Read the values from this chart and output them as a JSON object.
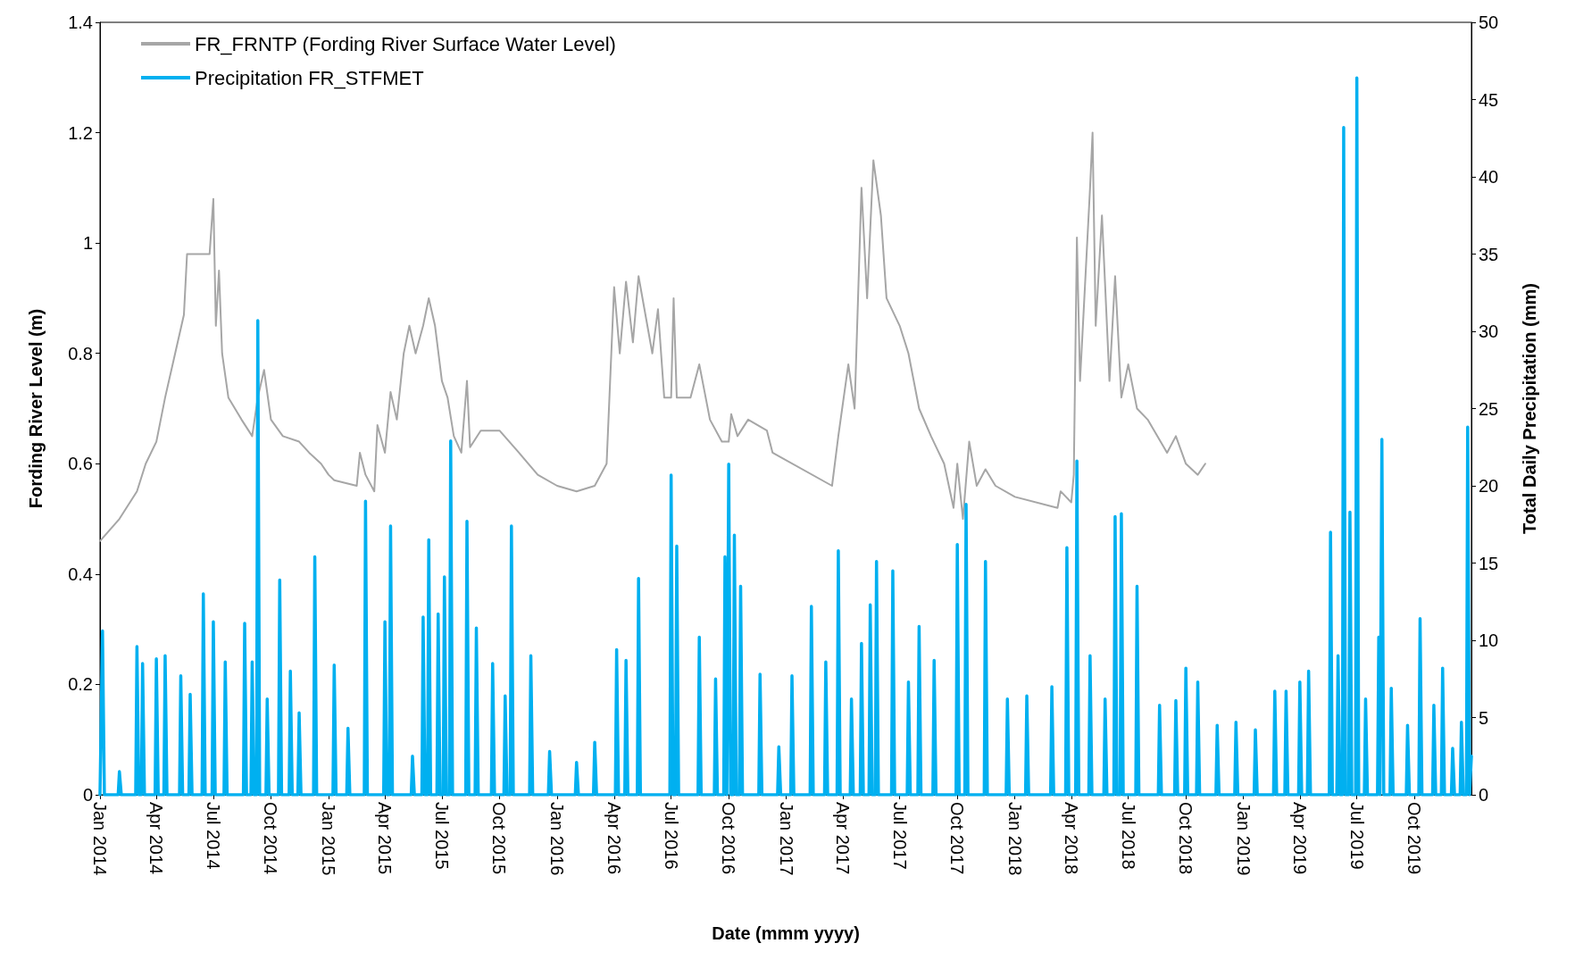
{
  "chart_data": {
    "type": "line",
    "xlabel": "Date (mmm yyyy)",
    "ylabel": "Fording River Level (m)",
    "y2label": "Total Daily Precipitation (mm)",
    "xlim": [
      "2014-01-01",
      "2019-12-31"
    ],
    "xticks": [
      {
        "value": "2014-01-01",
        "label": "Jan 2014"
      },
      {
        "value": "2014-04-01",
        "label": "Apr 2014"
      },
      {
        "value": "2014-07-01",
        "label": "Jul 2014"
      },
      {
        "value": "2014-10-01",
        "label": "Oct 2014"
      },
      {
        "value": "2015-01-01",
        "label": "Jan 2015"
      },
      {
        "value": "2015-04-01",
        "label": "Apr 2015"
      },
      {
        "value": "2015-07-01",
        "label": "Jul 2015"
      },
      {
        "value": "2015-10-01",
        "label": "Oct 2015"
      },
      {
        "value": "2016-01-01",
        "label": "Jan 2016"
      },
      {
        "value": "2016-04-01",
        "label": "Apr 2016"
      },
      {
        "value": "2016-07-01",
        "label": "Jul 2016"
      },
      {
        "value": "2016-10-01",
        "label": "Oct 2016"
      },
      {
        "value": "2017-01-01",
        "label": "Jan 2017"
      },
      {
        "value": "2017-04-01",
        "label": "Apr 2017"
      },
      {
        "value": "2017-07-01",
        "label": "Jul 2017"
      },
      {
        "value": "2017-10-01",
        "label": "Oct 2017"
      },
      {
        "value": "2018-01-01",
        "label": "Jan 2018"
      },
      {
        "value": "2018-04-01",
        "label": "Apr 2018"
      },
      {
        "value": "2018-07-01",
        "label": "Jul 2018"
      },
      {
        "value": "2018-10-01",
        "label": "Oct 2018"
      },
      {
        "value": "2019-01-01",
        "label": "Jan 2019"
      },
      {
        "value": "2019-04-01",
        "label": "Apr 2019"
      },
      {
        "value": "2019-07-01",
        "label": "Jul 2019"
      },
      {
        "value": "2019-10-01",
        "label": "Oct 2019"
      }
    ],
    "ylim": [
      0,
      1.4
    ],
    "yticks": [
      0,
      0.2,
      0.4,
      0.6,
      0.8,
      1,
      1.2,
      1.4
    ],
    "y2lim": [
      0,
      50
    ],
    "y2ticks": [
      0,
      5,
      10,
      15,
      20,
      25,
      30,
      35,
      40,
      45,
      50
    ],
    "grid": false,
    "legend": "top left",
    "marker": "none",
    "line_style": "solid",
    "series": [
      {
        "name": "FR_FRNTP (Fording River Surface Water Level)",
        "color": "#a6a6a6",
        "x": [
          "2014-01-01",
          "2014-02-01",
          "2014-03-01",
          "2014-03-15",
          "2014-04-01",
          "2014-04-15",
          "2014-05-01",
          "2014-05-15",
          "2014-05-20",
          "2014-06-25",
          "2014-07-01",
          "2014-07-05",
          "2014-07-10",
          "2014-07-15",
          "2014-07-25",
          "2014-08-15",
          "2014-09-01",
          "2014-09-10",
          "2014-09-20",
          "2014-10-01",
          "2014-10-20",
          "2014-11-15",
          "2014-12-01",
          "2014-12-20",
          "2015-01-01",
          "2015-01-10",
          "2015-02-15",
          "2015-02-20",
          "2015-03-01",
          "2015-03-15",
          "2015-03-20",
          "2015-04-01",
          "2015-04-10",
          "2015-04-20",
          "2015-05-01",
          "2015-05-10",
          "2015-05-20",
          "2015-06-01",
          "2015-06-10",
          "2015-06-20",
          "2015-07-01",
          "2015-07-10",
          "2015-07-20",
          "2015-08-01",
          "2015-08-10",
          "2015-08-15",
          "2015-09-01",
          "2015-10-01",
          "2015-11-01",
          "2015-12-01",
          "2016-01-01",
          "2016-02-01",
          "2016-03-01",
          "2016-03-20",
          "2016-04-01",
          "2016-04-10",
          "2016-04-20",
          "2016-05-01",
          "2016-05-10",
          "2016-06-01",
          "2016-06-10",
          "2016-06-20",
          "2016-07-01",
          "2016-07-05",
          "2016-07-10",
          "2016-08-01",
          "2016-08-15",
          "2016-09-01",
          "2016-09-20",
          "2016-10-01",
          "2016-10-05",
          "2016-10-15",
          "2016-11-01",
          "2016-12-01",
          "2016-12-10",
          "2017-03-15",
          "2017-03-25",
          "2017-04-10",
          "2017-04-20",
          "2017-05-01",
          "2017-05-10",
          "2017-05-20",
          "2017-06-01",
          "2017-06-10",
          "2017-07-01",
          "2017-07-15",
          "2017-08-01",
          "2017-08-20",
          "2017-09-10",
          "2017-09-25",
          "2017-10-01",
          "2017-10-10",
          "2017-10-20",
          "2017-11-01",
          "2017-11-15",
          "2017-12-01",
          "2018-01-01",
          "2018-03-10",
          "2018-03-15",
          "2018-04-01",
          "2018-04-05",
          "2018-04-10",
          "2018-04-15",
          "2018-05-01",
          "2018-05-05",
          "2018-05-10",
          "2018-05-20",
          "2018-06-01",
          "2018-06-10",
          "2018-06-20",
          "2018-07-01",
          "2018-07-15",
          "2018-08-01",
          "2018-09-01",
          "2018-09-15",
          "2018-10-01",
          "2018-10-20",
          "2018-11-01"
        ],
        "values": [
          0.46,
          0.5,
          0.55,
          0.6,
          0.64,
          0.72,
          0.8,
          0.87,
          0.98,
          0.98,
          1.08,
          0.85,
          0.95,
          0.8,
          0.72,
          0.68,
          0.65,
          0.72,
          0.77,
          0.68,
          0.65,
          0.64,
          0.62,
          0.6,
          0.58,
          0.57,
          0.56,
          0.62,
          0.58,
          0.55,
          0.67,
          0.62,
          0.73,
          0.68,
          0.8,
          0.85,
          0.8,
          0.85,
          0.9,
          0.85,
          0.75,
          0.72,
          0.65,
          0.62,
          0.75,
          0.63,
          0.66,
          0.66,
          0.62,
          0.58,
          0.56,
          0.55,
          0.56,
          0.6,
          0.92,
          0.8,
          0.93,
          0.82,
          0.94,
          0.8,
          0.88,
          0.72,
          0.72,
          0.9,
          0.72,
          0.72,
          0.78,
          0.68,
          0.64,
          0.64,
          0.69,
          0.65,
          0.68,
          0.66,
          0.62,
          0.56,
          0.65,
          0.78,
          0.7,
          1.1,
          0.9,
          1.15,
          1.05,
          0.9,
          0.85,
          0.8,
          0.7,
          0.65,
          0.6,
          0.52,
          0.6,
          0.5,
          0.64,
          0.56,
          0.59,
          0.56,
          0.54,
          0.52,
          0.55,
          0.53,
          0.58,
          1.01,
          0.75,
          1.1,
          1.2,
          0.85,
          1.05,
          0.75,
          0.94,
          0.72,
          0.78,
          0.7,
          0.68,
          0.62,
          0.65,
          0.6,
          0.58,
          0.6
        ]
      },
      {
        "name": "Precipitation FR_STFMET",
        "color": "#00b0f0",
        "axis": "y2",
        "x": [
          "2014-01-01",
          "2014-01-05",
          "2014-01-08",
          "2014-01-30",
          "2014-02-01",
          "2014-02-04",
          "2014-02-27",
          "2014-03-01",
          "2014-03-04",
          "2014-03-08",
          "2014-03-10",
          "2014-03-13",
          "2014-03-30",
          "2014-04-01",
          "2014-04-04",
          "2014-04-13",
          "2014-04-15",
          "2014-04-18",
          "2014-05-08",
          "2014-05-10",
          "2014-05-13",
          "2014-05-23",
          "2014-05-25",
          "2014-05-28",
          "2014-06-13",
          "2014-06-15",
          "2014-06-18",
          "2014-06-29",
          "2014-07-01",
          "2014-07-04",
          "2014-07-18",
          "2014-07-20",
          "2014-07-23",
          "2014-08-18",
          "2014-08-20",
          "2014-08-23",
          "2014-08-30",
          "2014-09-01",
          "2014-09-04",
          "2014-09-08",
          "2014-09-10",
          "2014-09-13",
          "2014-09-23",
          "2014-09-25",
          "2014-09-28",
          "2014-10-13",
          "2014-10-15",
          "2014-10-18",
          "2014-10-30",
          "2014-11-01",
          "2014-11-04",
          "2014-11-13",
          "2014-11-15",
          "2014-11-18",
          "2014-12-08",
          "2014-12-10",
          "2014-12-13",
          "2015-01-08",
          "2015-01-10",
          "2015-01-13",
          "2015-01-30",
          "2015-02-01",
          "2015-02-04",
          "2015-02-27",
          "2015-03-01",
          "2015-03-04",
          "2015-03-30",
          "2015-04-01",
          "2015-04-04",
          "2015-04-08",
          "2015-04-10",
          "2015-04-13",
          "2015-05-13",
          "2015-05-15",
          "2015-05-18",
          "2015-05-30",
          "2015-06-01",
          "2015-06-04",
          "2015-06-08",
          "2015-06-10",
          "2015-06-13",
          "2015-06-23",
          "2015-06-25",
          "2015-06-28",
          "2015-07-03",
          "2015-07-05",
          "2015-07-08",
          "2015-07-13",
          "2015-07-15",
          "2015-07-18",
          "2015-08-08",
          "2015-08-10",
          "2015-08-13",
          "2015-08-23",
          "2015-08-25",
          "2015-08-28",
          "2015-09-18",
          "2015-09-20",
          "2015-09-23",
          "2015-10-08",
          "2015-10-10",
          "2015-10-13",
          "2015-10-18",
          "2015-10-20",
          "2015-10-23",
          "2015-11-18",
          "2015-11-20",
          "2015-11-23",
          "2015-12-18",
          "2015-12-20",
          "2015-12-23",
          "2016-01-30",
          "2016-02-01",
          "2016-02-04",
          "2016-02-28",
          "2016-03-01",
          "2016-03-04",
          "2016-04-03",
          "2016-04-05",
          "2016-04-08",
          "2016-04-18",
          "2016-04-20",
          "2016-04-23",
          "2016-05-08",
          "2016-05-10",
          "2016-05-13",
          "2016-06-29",
          "2016-07-01",
          "2016-07-04",
          "2016-07-08",
          "2016-07-10",
          "2016-07-13",
          "2016-08-13",
          "2016-08-15",
          "2016-08-18",
          "2016-09-08",
          "2016-09-10",
          "2016-09-13",
          "2016-09-23",
          "2016-09-25",
          "2016-09-28",
          "2016-09-29",
          "2016-10-01",
          "2016-10-04",
          "2016-10-08",
          "2016-10-10",
          "2016-10-13",
          "2016-10-18",
          "2016-10-20",
          "2016-10-23",
          "2016-11-18",
          "2016-11-20",
          "2016-11-23",
          "2016-12-18",
          "2016-12-20",
          "2016-12-23",
          "2017-01-08",
          "2017-01-10",
          "2017-01-13",
          "2017-02-08",
          "2017-02-10",
          "2017-02-13",
          "2017-03-03",
          "2017-03-05",
          "2017-03-08",
          "2017-03-23",
          "2017-03-25",
          "2017-03-28",
          "2017-04-13",
          "2017-04-15",
          "2017-04-18",
          "2017-04-29",
          "2017-05-01",
          "2017-05-04",
          "2017-05-13",
          "2017-05-15",
          "2017-05-18",
          "2017-05-23",
          "2017-05-25",
          "2017-05-28",
          "2017-06-18",
          "2017-06-20",
          "2017-06-23",
          "2017-07-13",
          "2017-07-15",
          "2017-07-18",
          "2017-07-30",
          "2017-08-01",
          "2017-08-04",
          "2017-08-23",
          "2017-08-25",
          "2017-08-28",
          "2017-09-29",
          "2017-10-01",
          "2017-10-04",
          "2017-10-13",
          "2017-10-15",
          "2017-10-18",
          "2017-11-13",
          "2017-11-15",
          "2017-11-18",
          "2017-12-18",
          "2017-12-20",
          "2017-12-23",
          "2018-01-18",
          "2018-01-20",
          "2018-01-23",
          "2018-02-27",
          "2018-03-01",
          "2018-03-04",
          "2018-03-23",
          "2018-03-25",
          "2018-03-28",
          "2018-04-08",
          "2018-04-10",
          "2018-04-13",
          "2018-04-29",
          "2018-05-01",
          "2018-05-04",
          "2018-05-23",
          "2018-05-25",
          "2018-05-28",
          "2018-06-08",
          "2018-06-10",
          "2018-06-13",
          "2018-06-18",
          "2018-06-20",
          "2018-06-23",
          "2018-07-13",
          "2018-07-15",
          "2018-07-18",
          "2018-08-18",
          "2018-08-20",
          "2018-08-23",
          "2018-09-13",
          "2018-09-15",
          "2018-09-18",
          "2018-09-29",
          "2018-10-01",
          "2018-10-04",
          "2018-10-18",
          "2018-10-20",
          "2018-10-23",
          "2018-11-18",
          "2018-11-20",
          "2018-11-23",
          "2018-12-18",
          "2018-12-20",
          "2018-12-23",
          "2019-01-18",
          "2019-01-20",
          "2019-01-23",
          "2019-02-18",
          "2019-02-20",
          "2019-02-23",
          "2019-03-08",
          "2019-03-10",
          "2019-03-13",
          "2019-03-30",
          "2019-04-01",
          "2019-04-04",
          "2019-04-13",
          "2019-04-15",
          "2019-04-18",
          "2019-05-18",
          "2019-05-20",
          "2019-05-23",
          "2019-05-30",
          "2019-06-01",
          "2019-06-04",
          "2019-06-08",
          "2019-06-10",
          "2019-06-13",
          "2019-06-18",
          "2019-06-20",
          "2019-06-23",
          "2019-06-29",
          "2019-07-01",
          "2019-07-04",
          "2019-07-13",
          "2019-07-15",
          "2019-07-18",
          "2019-08-03",
          "2019-08-05",
          "2019-08-07",
          "2019-08-08",
          "2019-08-10",
          "2019-08-13",
          "2019-08-23",
          "2019-08-25",
          "2019-08-28",
          "2019-09-18",
          "2019-09-20",
          "2019-09-23",
          "2019-10-08",
          "2019-10-10",
          "2019-10-13",
          "2019-10-30",
          "2019-11-01",
          "2019-11-04",
          "2019-11-13",
          "2019-11-15",
          "2019-11-18",
          "2019-11-29",
          "2019-12-01",
          "2019-12-04",
          "2019-12-13",
          "2019-12-15",
          "2019-12-18",
          "2019-12-23",
          "2019-12-25",
          "2019-12-28",
          "2019-12-31"
        ],
        "values": [
          0,
          10.6,
          0,
          0,
          1.5,
          0,
          0,
          9.6,
          0,
          0,
          8.5,
          0,
          0,
          8.8,
          0,
          0,
          9.0,
          0,
          0,
          7.7,
          0,
          0,
          6.5,
          0,
          0,
          13.0,
          0,
          0,
          11.2,
          0,
          0,
          8.6,
          0,
          0,
          11.1,
          0,
          0,
          8.6,
          0,
          0,
          30.7,
          0,
          0,
          6.2,
          0,
          0,
          13.9,
          0,
          0,
          8.0,
          0,
          0,
          5.3,
          0,
          0,
          15.4,
          0,
          0,
          8.4,
          0,
          0,
          4.3,
          0,
          0,
          19.0,
          0,
          0,
          11.2,
          0,
          0,
          17.4,
          0,
          0,
          2.5,
          0,
          0,
          11.5,
          0,
          0,
          16.5,
          0,
          0,
          11.7,
          0,
          0,
          14.1,
          0,
          0,
          22.9,
          0,
          0,
          17.7,
          0,
          0,
          10.8,
          0,
          0,
          8.5,
          0,
          0,
          6.4,
          0,
          0,
          17.4,
          0,
          0,
          9.0,
          0,
          0,
          2.8,
          0,
          0,
          2.1,
          0,
          0,
          3.4,
          0,
          0,
          9.4,
          0,
          0,
          8.7,
          0,
          0,
          14.0,
          0,
          0,
          20.7,
          0,
          0,
          16.1,
          0,
          0,
          10.2,
          0,
          0,
          7.5,
          0,
          0,
          15.4,
          0,
          0,
          21.4,
          0,
          0,
          16.8,
          0,
          0,
          13.5,
          0,
          0,
          7.8,
          0,
          0,
          3.1,
          0,
          0,
          7.7,
          0,
          0,
          12.2,
          0,
          0,
          8.6,
          0,
          0,
          15.8,
          0,
          0,
          6.2,
          0,
          0,
          9.8,
          0,
          0,
          12.3,
          0,
          0,
          15.1,
          0,
          0,
          14.5,
          0,
          0,
          7.3,
          0,
          0,
          10.9,
          0,
          0,
          8.7,
          0,
          0,
          16.2,
          0,
          0,
          18.8,
          0,
          0,
          15.1,
          0,
          0,
          6.2,
          0,
          0,
          6.4,
          0,
          0,
          7.0,
          0,
          0,
          16.0,
          0,
          0,
          21.6,
          0,
          0,
          9.0,
          0,
          0,
          6.2,
          0,
          0,
          18.0,
          0,
          0,
          18.2,
          0,
          0,
          13.5,
          0,
          0,
          5.8,
          0,
          0,
          6.1,
          0,
          0,
          8.2,
          0,
          0,
          7.3,
          0,
          0,
          4.5,
          0,
          0,
          4.7,
          0,
          0,
          4.2,
          0,
          0,
          6.7,
          0,
          0,
          6.7,
          0,
          0,
          7.3,
          0,
          0,
          8.0,
          0,
          0,
          17.0,
          0,
          0,
          9.0,
          0,
          0,
          43.2,
          0,
          0,
          18.3,
          0,
          0,
          46.4,
          0,
          0,
          6.2,
          0,
          0,
          10.2,
          0,
          0,
          23.0,
          0,
          0,
          6.9,
          0,
          0,
          4.5,
          0,
          0,
          11.4,
          0,
          0,
          5.8,
          0,
          0,
          8.2,
          0,
          0,
          3.0,
          0,
          0,
          4.7,
          0,
          0,
          23.8,
          0,
          2.5
        ]
      }
    ]
  }
}
